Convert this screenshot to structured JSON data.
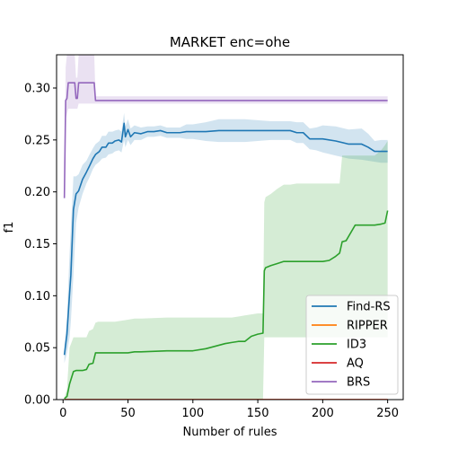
{
  "chart_data": {
    "type": "line",
    "title": "MARKET enc=ohe",
    "xlabel": "Number of rules",
    "ylabel": "f1",
    "xlim": [
      -5,
      262
    ],
    "ylim": [
      0.0,
      0.332
    ],
    "xticks": [
      0,
      50,
      100,
      150,
      200,
      250
    ],
    "xtick_labels": [
      "0",
      "50",
      "100",
      "150",
      "200",
      "250"
    ],
    "yticks": [
      0.0,
      0.05,
      0.1,
      0.15,
      0.2,
      0.25,
      0.3
    ],
    "ytick_labels": [
      "0.00",
      "0.05",
      "0.10",
      "0.15",
      "0.20",
      "0.25",
      "0.30"
    ],
    "grid": false,
    "legend_position": "lower right",
    "series": [
      {
        "name": "Find-RS",
        "color": "#1f77b4",
        "x": [
          1,
          3,
          5,
          6,
          8,
          10,
          12,
          15,
          18,
          20,
          23,
          25,
          28,
          30,
          33,
          35,
          38,
          40,
          43,
          45,
          47,
          48,
          50,
          52,
          55,
          60,
          65,
          70,
          75,
          80,
          85,
          90,
          95,
          100,
          110,
          120,
          130,
          140,
          150,
          160,
          170,
          175,
          180,
          185,
          190,
          195,
          200,
          210,
          220,
          230,
          235,
          240,
          245,
          250
        ],
        "y": [
          0.043,
          0.063,
          0.102,
          0.12,
          0.183,
          0.198,
          0.201,
          0.212,
          0.219,
          0.224,
          0.232,
          0.236,
          0.239,
          0.243,
          0.243,
          0.247,
          0.247,
          0.249,
          0.25,
          0.248,
          0.266,
          0.253,
          0.26,
          0.253,
          0.257,
          0.256,
          0.258,
          0.258,
          0.259,
          0.257,
          0.257,
          0.257,
          0.258,
          0.258,
          0.258,
          0.259,
          0.259,
          0.259,
          0.259,
          0.259,
          0.259,
          0.259,
          0.257,
          0.257,
          0.251,
          0.251,
          0.251,
          0.249,
          0.246,
          0.246,
          0.243,
          0.239,
          0.239,
          0.239
        ],
        "lower": [
          0.035,
          0.045,
          0.06,
          0.075,
          0.12,
          0.17,
          0.185,
          0.198,
          0.208,
          0.213,
          0.222,
          0.226,
          0.229,
          0.232,
          0.233,
          0.236,
          0.237,
          0.239,
          0.24,
          0.238,
          0.25,
          0.243,
          0.25,
          0.245,
          0.25,
          0.25,
          0.253,
          0.253,
          0.254,
          0.252,
          0.252,
          0.252,
          0.251,
          0.251,
          0.249,
          0.248,
          0.248,
          0.248,
          0.249,
          0.25,
          0.25,
          0.25,
          0.247,
          0.247,
          0.241,
          0.24,
          0.238,
          0.235,
          0.232,
          0.231,
          0.23,
          0.229,
          0.228,
          0.228
        ],
        "upper": [
          0.052,
          0.08,
          0.14,
          0.165,
          0.215,
          0.215,
          0.217,
          0.226,
          0.23,
          0.235,
          0.242,
          0.246,
          0.249,
          0.254,
          0.254,
          0.258,
          0.258,
          0.259,
          0.26,
          0.258,
          0.276,
          0.263,
          0.27,
          0.261,
          0.264,
          0.262,
          0.263,
          0.263,
          0.264,
          0.262,
          0.262,
          0.262,
          0.265,
          0.265,
          0.267,
          0.27,
          0.27,
          0.27,
          0.269,
          0.268,
          0.268,
          0.268,
          0.267,
          0.267,
          0.261,
          0.262,
          0.264,
          0.263,
          0.26,
          0.261,
          0.256,
          0.249,
          0.25,
          0.25
        ]
      },
      {
        "name": "RIPPER",
        "color": "#ff7f0e",
        "x": [
          1,
          250
        ],
        "y": [
          0.0,
          0.0
        ],
        "lower": [
          0.0,
          0.0
        ],
        "upper": [
          0.0,
          0.0
        ]
      },
      {
        "name": "ID3",
        "color": "#2ca02c",
        "x": [
          1,
          3,
          5,
          8,
          10,
          15,
          18,
          20,
          23,
          25,
          27,
          40,
          50,
          55,
          60,
          80,
          100,
          110,
          125,
          130,
          135,
          140,
          145,
          150,
          154,
          155,
          156,
          160,
          165,
          170,
          175,
          180,
          185,
          190,
          195,
          200,
          205,
          210,
          213,
          215,
          218,
          225,
          240,
          245,
          248,
          250
        ],
        "y": [
          0.001,
          0.003,
          0.015,
          0.027,
          0.028,
          0.028,
          0.029,
          0.034,
          0.035,
          0.045,
          0.045,
          0.045,
          0.045,
          0.046,
          0.046,
          0.047,
          0.047,
          0.049,
          0.054,
          0.055,
          0.056,
          0.056,
          0.061,
          0.063,
          0.064,
          0.124,
          0.127,
          0.129,
          0.131,
          0.133,
          0.133,
          0.133,
          0.133,
          0.133,
          0.133,
          0.133,
          0.134,
          0.138,
          0.141,
          0.152,
          0.153,
          0.168,
          0.168,
          0.169,
          0.17,
          0.182
        ],
        "lower": [
          0.0,
          0.0,
          0.0,
          0.0,
          0.0,
          0.0,
          0.0,
          0.0,
          0.0,
          0.0,
          0.0,
          0.0,
          0.0,
          0.0,
          0.0,
          0.0,
          0.0,
          0.0,
          0.0,
          0.0,
          0.0,
          0.0,
          0.0,
          0.0,
          0.0,
          0.06,
          0.06,
          0.06,
          0.06,
          0.06,
          0.06,
          0.06,
          0.06,
          0.06,
          0.06,
          0.06,
          0.06,
          0.06,
          0.06,
          0.06,
          0.06,
          0.06,
          0.06,
          0.06,
          0.06,
          0.06
        ],
        "upper": [
          0.002,
          0.01,
          0.05,
          0.06,
          0.06,
          0.06,
          0.06,
          0.066,
          0.068,
          0.074,
          0.075,
          0.075,
          0.077,
          0.078,
          0.078,
          0.079,
          0.079,
          0.079,
          0.079,
          0.079,
          0.08,
          0.081,
          0.082,
          0.083,
          0.083,
          0.19,
          0.195,
          0.198,
          0.203,
          0.207,
          0.207,
          0.208,
          0.208,
          0.208,
          0.208,
          0.208,
          0.208,
          0.208,
          0.208,
          0.235,
          0.235,
          0.235,
          0.235,
          0.24,
          0.245,
          0.249
        ]
      },
      {
        "name": "AQ",
        "color": "#d62728",
        "x": [
          1,
          250
        ],
        "y": [
          0.0,
          0.0
        ],
        "lower": [
          0.0,
          0.0
        ],
        "upper": [
          0.0,
          0.0
        ]
      },
      {
        "name": "BRS",
        "color": "#9467bd",
        "x": [
          1,
          2,
          3,
          4,
          5,
          6,
          7,
          8,
          9,
          10,
          11,
          12,
          15,
          20,
          23,
          24,
          25,
          26,
          30,
          50,
          100,
          150,
          200,
          250
        ],
        "y": [
          0.194,
          0.288,
          0.29,
          0.305,
          0.305,
          0.305,
          0.305,
          0.305,
          0.305,
          0.29,
          0.29,
          0.305,
          0.305,
          0.305,
          0.305,
          0.305,
          0.288,
          0.288,
          0.288,
          0.288,
          0.288,
          0.288,
          0.288,
          0.288
        ],
        "lower": [
          0.194,
          0.27,
          0.275,
          0.28,
          0.28,
          0.28,
          0.28,
          0.28,
          0.28,
          0.28,
          0.28,
          0.285,
          0.285,
          0.285,
          0.285,
          0.285,
          0.285,
          0.285,
          0.285,
          0.285,
          0.285,
          0.285,
          0.285,
          0.285
        ],
        "upper": [
          0.194,
          0.32,
          0.332,
          0.332,
          0.332,
          0.332,
          0.332,
          0.332,
          0.332,
          0.31,
          0.31,
          0.332,
          0.332,
          0.332,
          0.332,
          0.332,
          0.292,
          0.292,
          0.292,
          0.292,
          0.292,
          0.292,
          0.292,
          0.292
        ]
      }
    ]
  }
}
